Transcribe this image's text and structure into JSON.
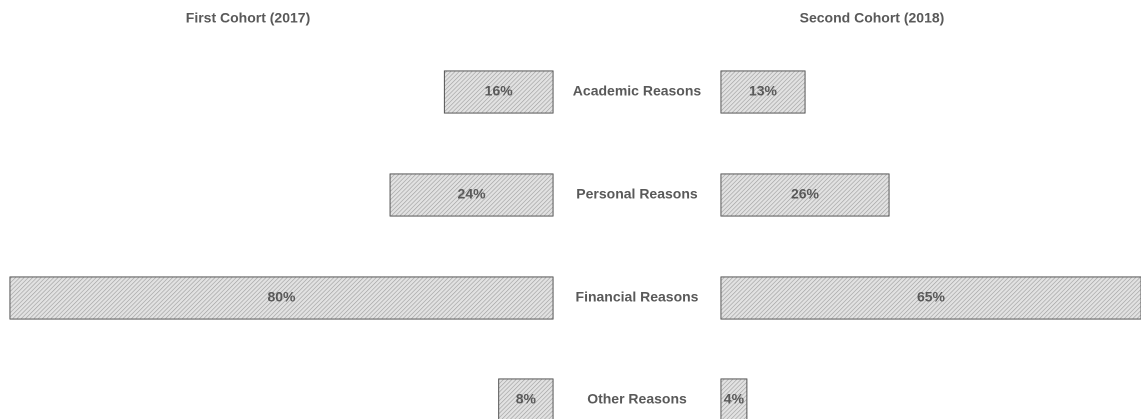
{
  "chart_data": {
    "type": "bar",
    "categories": [
      "Academic Reasons",
      "Personal Reasons",
      "Financial Reasons",
      "Other Reasons"
    ],
    "series": [
      {
        "name": "First Cohort (2017)",
        "color": "#d9d9d9",
        "values": [
          16,
          24,
          80,
          8
        ],
        "value_labels": [
          "16%",
          "24%",
          "80%",
          "8%"
        ]
      },
      {
        "name": "Second Cohort (2018)",
        "color": "#d9d9d9",
        "values": [
          13,
          26,
          65,
          4
        ],
        "value_labels": [
          "13%",
          "26%",
          "65%",
          "4%"
        ]
      }
    ]
  }
}
